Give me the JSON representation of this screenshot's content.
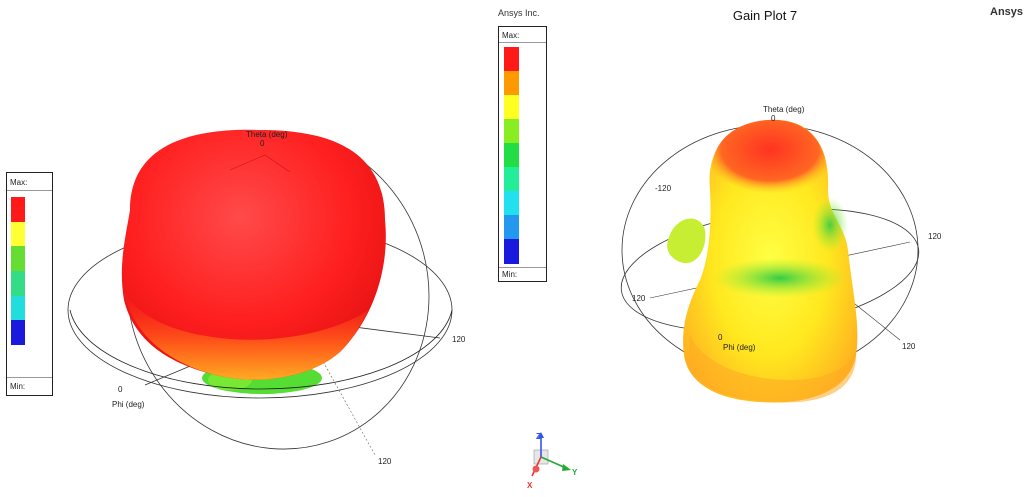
{
  "header": {
    "title": "Gain Plot 7",
    "company": "Ansys Inc.",
    "brand": "Ansys"
  },
  "legend_left": {
    "max_label": "Max:",
    "min_label": "Min:",
    "colors": [
      "#ff1a1a",
      "#ffff33",
      "#66dd33",
      "#33dd88",
      "#22dddd",
      "#1a1adf"
    ]
  },
  "legend_center": {
    "max_label": "Max:",
    "min_label": "Min:",
    "colors": [
      "#ff1a1a",
      "#ff9900",
      "#ffff22",
      "#88ee22",
      "#22dd44",
      "#22ee99",
      "#22e0ee",
      "#2299ee",
      "#1a1adf"
    ]
  },
  "axis_triad": {
    "z": "Z",
    "y": "Y",
    "x": "X"
  },
  "chart_data": [
    {
      "type": "3d-radiation-pattern",
      "axis_labels": {
        "theta": "Theta (deg)",
        "phi": "Phi (deg)"
      },
      "tick_labels": [
        "0",
        "0",
        "120",
        "120"
      ]
    },
    {
      "type": "3d-radiation-pattern",
      "axis_labels": {
        "theta": "Theta (deg)",
        "phi": "Phi (deg)"
      },
      "tick_labels": [
        "0",
        "-120",
        "120",
        "120",
        "0",
        "120"
      ]
    }
  ]
}
